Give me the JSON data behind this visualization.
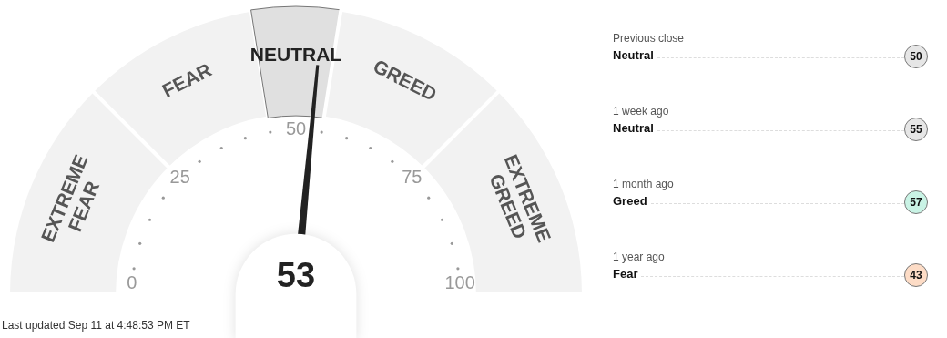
{
  "chart_data": [
    {
      "type": "donut",
      "categories": [
        "EXTREME FEAR",
        "FEAR",
        "NEUTRAL",
        "GREED",
        "EXTREME GREED"
      ],
      "values": [
        25,
        20,
        10,
        20,
        25
      ],
      "colors": [
        "#f2f2f2",
        "#f2f2f2",
        "#e0e0e0",
        "#f2f2f2",
        "#f2f2f2"
      ],
      "needle": "NEUTRAL",
      "annotations": [
        "53",
        "0",
        "25",
        "50",
        "75",
        "100",
        "Last updated Sep 11 at 4:48:53 PM ET"
      ]
    },
    {
      "type": "other",
      "categories": [
        "Previous close",
        "1 week ago",
        "1 month ago",
        "1 year ago"
      ],
      "values": [
        50,
        55,
        57,
        43
      ],
      "data_labels": true,
      "annotations": [
        "Neutral",
        "Neutral",
        "Greed",
        "Fear"
      ],
      "colors": [
        "#e6e6e6",
        "#e6e6e6",
        "#c9f3e5",
        "#fddcc6"
      ]
    }
  ]
}
